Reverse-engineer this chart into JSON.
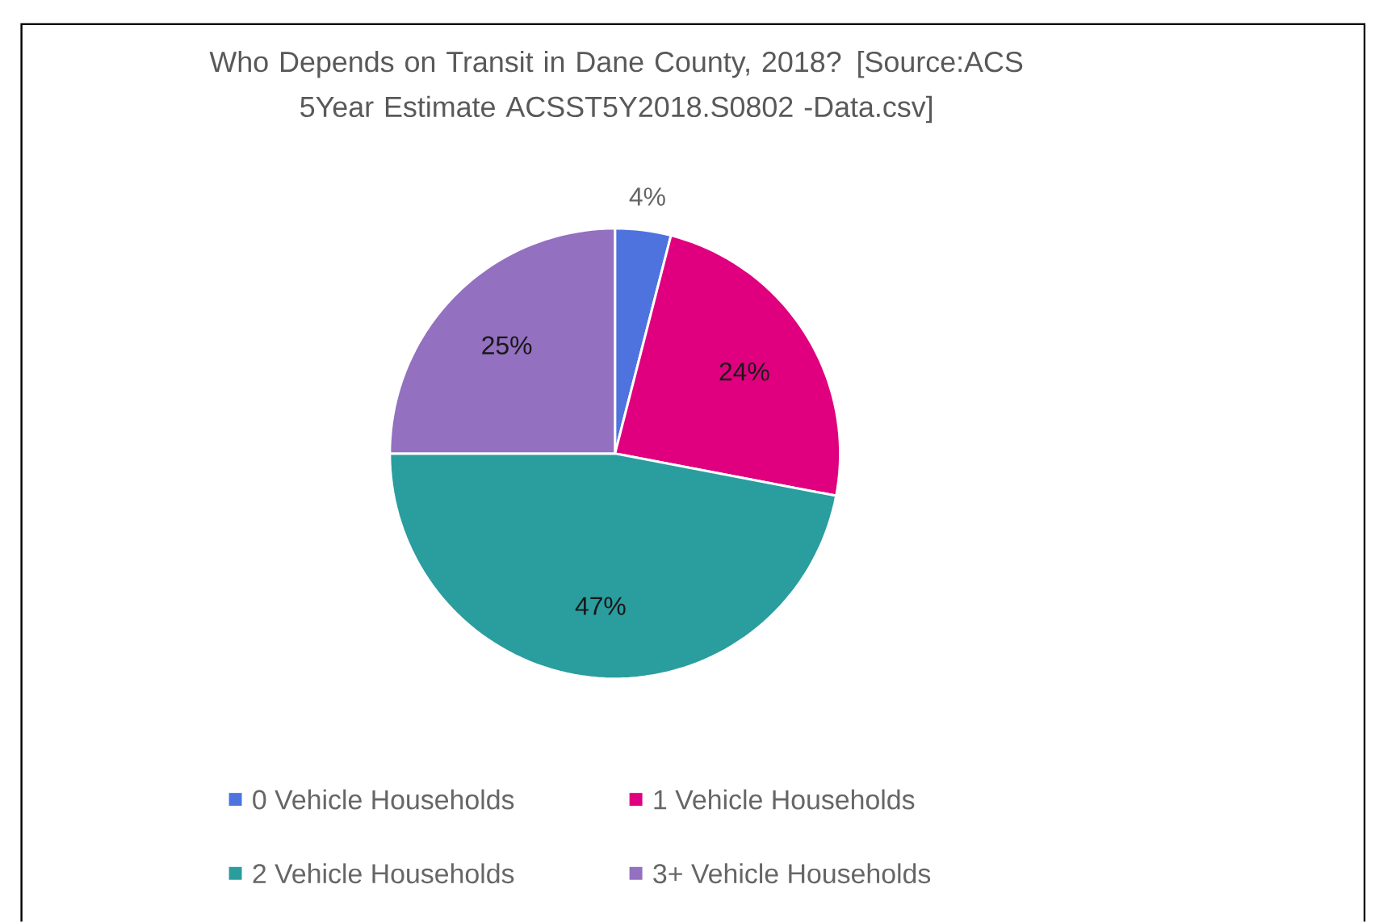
{
  "chart_data": {
    "type": "pie",
    "title": "Who Depends on Transit in Dane County, 2018? [Source:ACS 5Year Estimate ACSST5Y2018.S0802  -Data.csv]",
    "categories": [
      "0 Vehicle Households",
      "1 Vehicle Households",
      "2 Vehicle Households",
      "3+ Vehicle Households"
    ],
    "values": [
      4,
      24,
      47,
      25
    ],
    "colors": [
      "#4e73df",
      "#e0007f",
      "#2a9d9f",
      "#9370c0"
    ],
    "value_labels": [
      "4%",
      "24%",
      "47%",
      "25%"
    ],
    "legend": "bottom"
  }
}
